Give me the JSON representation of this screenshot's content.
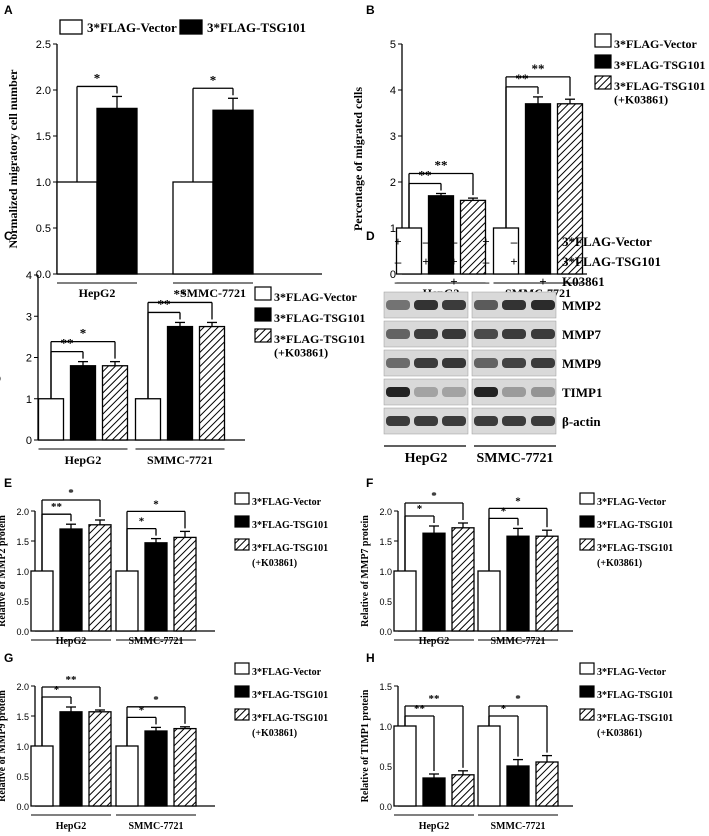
{
  "colors": {
    "axis": "#000000",
    "bar_fill_solid": "#000000",
    "bar_fill_open": "#ffffff",
    "blot_bg": "#d9d9d9",
    "band": "#2a2a2a"
  },
  "chart_data": [
    {
      "id": "A",
      "type": "bar",
      "ylabel": "Normalized migratory cell number",
      "categories": [
        "HepG2",
        "SMMC-7721"
      ],
      "ylim": [
        0,
        2.5
      ],
      "yticks": [
        "0.0",
        "0.5",
        "1.0",
        "1.5",
        "2.0",
        "2.5"
      ],
      "legend": {
        "placement": "top",
        "entries": [
          "3*FLAG-Vector",
          "3*FLAG-TSG101"
        ]
      },
      "series": [
        {
          "name": "3*FLAG-Vector",
          "pattern": "open",
          "values": [
            1.0,
            1.0
          ],
          "errors": [
            0,
            0
          ]
        },
        {
          "name": "3*FLAG-TSG101",
          "pattern": "solid",
          "values": [
            1.8,
            1.78
          ],
          "errors": [
            0.13,
            0.13
          ]
        }
      ],
      "significance": [
        {
          "category": 0,
          "from": 0,
          "to": 1,
          "label": "*"
        },
        {
          "category": 1,
          "from": 0,
          "to": 1,
          "label": "*"
        }
      ]
    },
    {
      "id": "B",
      "type": "bar",
      "ylabel": "Percentage of migrated cells",
      "categories": [
        "HepG2",
        "SMMC-7721"
      ],
      "ylim": [
        0,
        5
      ],
      "yticks": [
        "0",
        "1",
        "2",
        "3",
        "4",
        "5"
      ],
      "legend": {
        "placement": "right",
        "entries": [
          "3*FLAG-Vector",
          "3*FLAG-TSG101",
          "3*FLAG-TSG101",
          "(+K03861)"
        ]
      },
      "series": [
        {
          "name": "3*FLAG-Vector",
          "pattern": "open",
          "values": [
            1.0,
            1.0
          ],
          "errors": [
            0,
            0
          ]
        },
        {
          "name": "3*FLAG-TSG101",
          "pattern": "solid",
          "values": [
            1.7,
            3.7
          ],
          "errors": [
            0.05,
            0.15
          ]
        },
        {
          "name": "3*FLAG-TSG101 (+K03861)",
          "pattern": "hatch",
          "values": [
            1.6,
            3.7
          ],
          "errors": [
            0.05,
            0.1
          ]
        }
      ],
      "significance": [
        {
          "category": 0,
          "from": 0,
          "to": 1,
          "label": "**"
        },
        {
          "category": 0,
          "from": 0,
          "to": 2,
          "label": "**"
        },
        {
          "category": 1,
          "from": 0,
          "to": 1,
          "label": "**"
        },
        {
          "category": 1,
          "from": 0,
          "to": 2,
          "label": "**"
        }
      ]
    },
    {
      "id": "C",
      "type": "bar",
      "ylabel": "Percentage of invaded cells",
      "categories": [
        "HepG2",
        "SMMC-7721"
      ],
      "ylim": [
        0,
        4
      ],
      "yticks": [
        "0",
        "1",
        "2",
        "3",
        "4"
      ],
      "legend": {
        "placement": "right",
        "entries": [
          "3*FLAG-Vector",
          "3*FLAG-TSG101",
          "3*FLAG-TSG101",
          "(+K03861)"
        ]
      },
      "series": [
        {
          "name": "3*FLAG-Vector",
          "pattern": "open",
          "values": [
            1.0,
            1.0
          ],
          "errors": [
            0,
            0
          ]
        },
        {
          "name": "3*FLAG-TSG101",
          "pattern": "solid",
          "values": [
            1.8,
            2.75
          ],
          "errors": [
            0.1,
            0.1
          ]
        },
        {
          "name": "3*FLAG-TSG101 (+K03861)",
          "pattern": "hatch",
          "values": [
            1.8,
            2.75
          ],
          "errors": [
            0.1,
            0.1
          ]
        }
      ],
      "significance": [
        {
          "category": 0,
          "from": 0,
          "to": 1,
          "label": "**"
        },
        {
          "category": 0,
          "from": 0,
          "to": 2,
          "label": "*"
        },
        {
          "category": 1,
          "from": 0,
          "to": 1,
          "label": "**"
        },
        {
          "category": 1,
          "from": 0,
          "to": 2,
          "label": "**"
        }
      ]
    },
    {
      "id": "E",
      "type": "bar",
      "ylabel": "Relative of MMP2 protein",
      "categories": [
        "HepG2",
        "SMMC-7721"
      ],
      "ylim": [
        0,
        2.0
      ],
      "yticks": [
        "0.0",
        "0.5",
        "1.0",
        "1.5",
        "2.0"
      ],
      "legend": {
        "placement": "right",
        "entries": [
          "3*FLAG-Vector",
          "3*FLAG-TSG101",
          "3*FLAG-TSG101",
          "(+K03861)"
        ]
      },
      "series": [
        {
          "name": "3*FLAG-Vector",
          "pattern": "open",
          "values": [
            1.0,
            1.0
          ],
          "errors": [
            0,
            0
          ]
        },
        {
          "name": "3*FLAG-TSG101",
          "pattern": "solid",
          "values": [
            1.7,
            1.47
          ],
          "errors": [
            0.08,
            0.07
          ]
        },
        {
          "name": "3*FLAG-TSG101 (+K03861)",
          "pattern": "hatch",
          "values": [
            1.77,
            1.56
          ],
          "errors": [
            0.08,
            0.1
          ]
        }
      ],
      "significance": [
        {
          "category": 0,
          "from": 0,
          "to": 1,
          "label": "**"
        },
        {
          "category": 0,
          "from": 0,
          "to": 2,
          "label": "*"
        },
        {
          "category": 1,
          "from": 0,
          "to": 1,
          "label": "*"
        },
        {
          "category": 1,
          "from": 0,
          "to": 2,
          "label": "*"
        }
      ]
    },
    {
      "id": "F",
      "type": "bar",
      "ylabel": "Relative of MMP7 protein",
      "categories": [
        "HepG2",
        "SMMC-7721"
      ],
      "ylim": [
        0,
        2.0
      ],
      "yticks": [
        "0.0",
        "0.5",
        "1.0",
        "1.5",
        "2.0"
      ],
      "legend": {
        "placement": "right",
        "entries": [
          "3*FLAG-Vector",
          "3*FLAG-TSG101",
          "3*FLAG-TSG101",
          "(+K03861)"
        ]
      },
      "series": [
        {
          "name": "3*FLAG-Vector",
          "pattern": "open",
          "values": [
            1.0,
            1.0
          ],
          "errors": [
            0,
            0
          ]
        },
        {
          "name": "3*FLAG-TSG101",
          "pattern": "solid",
          "values": [
            1.63,
            1.58
          ],
          "errors": [
            0.12,
            0.13
          ]
        },
        {
          "name": "3*FLAG-TSG101 (+K03861)",
          "pattern": "hatch",
          "values": [
            1.72,
            1.58
          ],
          "errors": [
            0.08,
            0.1
          ]
        }
      ],
      "significance": [
        {
          "category": 0,
          "from": 0,
          "to": 1,
          "label": "*"
        },
        {
          "category": 0,
          "from": 0,
          "to": 2,
          "label": "*"
        },
        {
          "category": 1,
          "from": 0,
          "to": 1,
          "label": "*"
        },
        {
          "category": 1,
          "from": 0,
          "to": 2,
          "label": "*"
        }
      ]
    },
    {
      "id": "G",
      "type": "bar",
      "ylabel": "Relative of MMP9 protein",
      "categories": [
        "HepG2",
        "SMMC-7721"
      ],
      "ylim": [
        0,
        2.0
      ],
      "yticks": [
        "0.0",
        "0.5",
        "1.0",
        "1.5",
        "2.0"
      ],
      "legend": {
        "placement": "right",
        "entries": [
          "3*FLAG-Vector",
          "3*FLAG-TSG101",
          "3*FLAG-TSG101",
          "(+K03861)"
        ]
      },
      "series": [
        {
          "name": "3*FLAG-Vector",
          "pattern": "open",
          "values": [
            1.0,
            1.0
          ],
          "errors": [
            0,
            0
          ]
        },
        {
          "name": "3*FLAG-TSG101",
          "pattern": "solid",
          "values": [
            1.57,
            1.25
          ],
          "errors": [
            0.08,
            0.06
          ]
        },
        {
          "name": "3*FLAG-TSG101 (+K03861)",
          "pattern": "hatch",
          "values": [
            1.57,
            1.29
          ],
          "errors": [
            0.03,
            0.03
          ]
        }
      ],
      "significance": [
        {
          "category": 0,
          "from": 0,
          "to": 1,
          "label": "*"
        },
        {
          "category": 0,
          "from": 0,
          "to": 2,
          "label": "**"
        },
        {
          "category": 1,
          "from": 0,
          "to": 1,
          "label": "*"
        },
        {
          "category": 1,
          "from": 0,
          "to": 2,
          "label": "*"
        }
      ]
    },
    {
      "id": "H",
      "type": "bar",
      "ylabel": "Relative of TIMP1 protein",
      "categories": [
        "HepG2",
        "SMMC-7721"
      ],
      "ylim": [
        0,
        1.5
      ],
      "yticks": [
        "0.0",
        "0.5",
        "1.0",
        "1.5"
      ],
      "legend": {
        "placement": "right",
        "entries": [
          "3*FLAG-Vector",
          "3*FLAG-TSG101",
          "3*FLAG-TSG101",
          "(+K03861)"
        ]
      },
      "series": [
        {
          "name": "3*FLAG-Vector",
          "pattern": "open",
          "values": [
            1.0,
            1.0
          ],
          "errors": [
            0,
            0
          ]
        },
        {
          "name": "3*FLAG-TSG101",
          "pattern": "solid",
          "values": [
            0.35,
            0.5
          ],
          "errors": [
            0.05,
            0.08
          ]
        },
        {
          "name": "3*FLAG-TSG101 (+K03861)",
          "pattern": "hatch",
          "values": [
            0.39,
            0.55
          ],
          "errors": [
            0.05,
            0.08
          ]
        }
      ],
      "significance": [
        {
          "category": 0,
          "from": 0,
          "to": 1,
          "label": "**"
        },
        {
          "category": 0,
          "from": 0,
          "to": 2,
          "label": "**"
        },
        {
          "category": 1,
          "from": 0,
          "to": 1,
          "label": "*"
        },
        {
          "category": 1,
          "from": 0,
          "to": 2,
          "label": "*"
        }
      ]
    }
  ],
  "blot": {
    "id": "D",
    "treatment_rows": [
      {
        "label": "3*FLAG-Vector",
        "marks": [
          "+",
          "–",
          "–",
          "+",
          "–",
          "–"
        ]
      },
      {
        "label": "3*FLAG-TSG101",
        "marks": [
          "–",
          "+",
          "+",
          "–",
          "+",
          "+"
        ]
      },
      {
        "label": "K03861",
        "marks": [
          "–",
          "–",
          "+",
          "–",
          "–",
          "+"
        ]
      }
    ],
    "proteins": [
      {
        "name": "MMP2",
        "intensity": [
          0.45,
          0.85,
          0.8,
          0.6,
          0.85,
          0.9
        ]
      },
      {
        "name": "MMP7",
        "intensity": [
          0.55,
          0.8,
          0.82,
          0.7,
          0.8,
          0.8
        ]
      },
      {
        "name": "MMP9",
        "intensity": [
          0.5,
          0.8,
          0.82,
          0.55,
          0.75,
          0.8
        ]
      },
      {
        "name": "TIMP1",
        "intensity": [
          0.95,
          0.15,
          0.15,
          0.95,
          0.2,
          0.25
        ]
      },
      {
        "name": "β-actin",
        "intensity": [
          0.8,
          0.8,
          0.8,
          0.8,
          0.8,
          0.8
        ]
      }
    ],
    "groups": [
      "HepG2",
      "SMMC-7721"
    ]
  }
}
